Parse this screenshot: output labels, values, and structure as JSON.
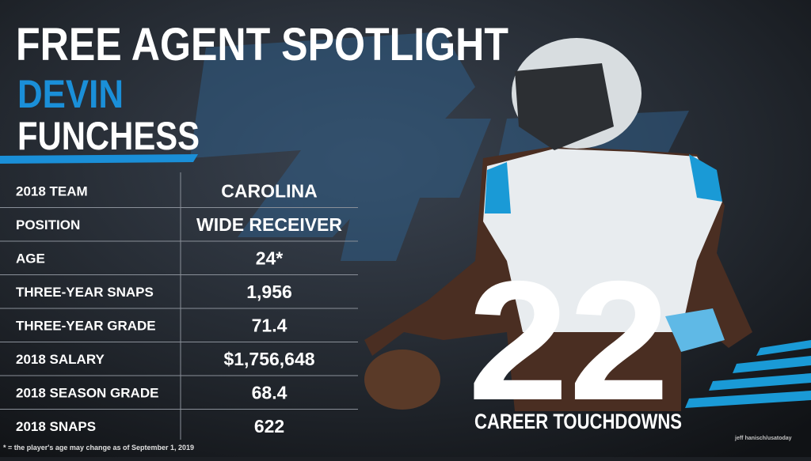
{
  "header": {
    "title": "FREE AGENT SPOTLIGHT",
    "first_name": "DEVIN",
    "last_name": "FUNCHESS"
  },
  "table": {
    "rows": [
      [
        "2018 TEAM",
        "CAROLINA"
      ],
      [
        "POSITION",
        "WIDE RECEIVER"
      ],
      [
        "AGE",
        "24*"
      ],
      [
        "THREE-YEAR SNAPS",
        "1,956"
      ],
      [
        "THREE-YEAR GRADE",
        "71.4"
      ],
      [
        "2018 SALARY",
        "$1,756,648"
      ],
      [
        "2018 SEASON GRADE",
        "68.4"
      ],
      [
        "2018 SNAPS",
        "622"
      ]
    ]
  },
  "highlight": {
    "number": "22",
    "label": "CAREER TOUCHDOWNS"
  },
  "footnote": "* = the player's age may change as of September 1, 2019",
  "credit": "jeff hanisch/usatoday"
}
